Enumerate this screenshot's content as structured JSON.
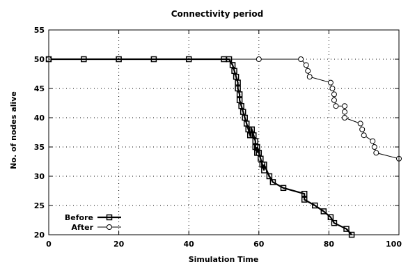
{
  "chart_data": {
    "type": "line",
    "title": "Connectivity period",
    "xlabel": "Simulation Time",
    "ylabel": "No. of nodes alive",
    "xlim": [
      0,
      100
    ],
    "ylim": [
      20,
      55
    ],
    "xticks": [
      0,
      20,
      40,
      60,
      80,
      100
    ],
    "yticks": [
      20,
      25,
      30,
      35,
      40,
      45,
      50,
      55
    ],
    "grid": true,
    "legend_position": "bottom-left",
    "series": [
      {
        "name": "Before",
        "marker": "square",
        "color": "#000000",
        "x": [
          0,
          10,
          20,
          30,
          40,
          50,
          51.5,
          52.5,
          53,
          53.5,
          54,
          54,
          54.5,
          54.5,
          55,
          55.5,
          56,
          56.5,
          57,
          57.5,
          58,
          58.5,
          59,
          59,
          59.5,
          59.5,
          60,
          60.5,
          61,
          61.5,
          61.5,
          63,
          64,
          67,
          73,
          73,
          76,
          78.5,
          80.5,
          81.5,
          85,
          86.5
        ],
        "y": [
          50,
          50,
          50,
          50,
          50,
          50,
          50,
          49,
          48,
          47,
          46,
          45,
          44,
          43,
          42,
          41,
          40,
          39,
          38,
          37,
          38,
          37,
          36,
          35,
          34,
          35,
          34,
          33,
          32,
          31,
          32,
          30,
          29,
          28,
          27,
          26,
          25,
          24,
          23,
          22,
          21,
          20
        ]
      },
      {
        "name": "After",
        "marker": "circle",
        "color": "#000000",
        "x": [
          0,
          60,
          72,
          73.5,
          74,
          74.5,
          80.5,
          81,
          81.5,
          81.5,
          82,
          84.5,
          84.5,
          84.5,
          89,
          89.5,
          90,
          92.5,
          93,
          93.5,
          100
        ],
        "y": [
          50,
          50,
          50,
          49,
          48,
          47,
          46,
          45,
          44,
          43,
          42,
          42,
          41,
          40,
          39,
          38,
          37,
          36,
          35,
          34,
          33
        ]
      }
    ]
  }
}
